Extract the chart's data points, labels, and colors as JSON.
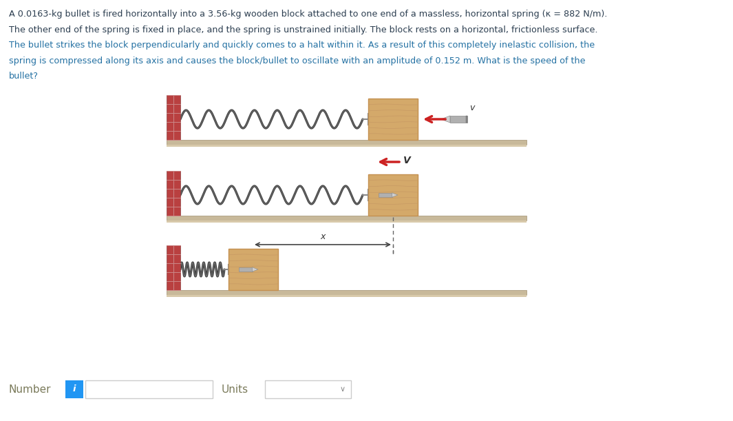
{
  "bg_color": "#ffffff",
  "text_color_dark": "#2c3e50",
  "text_color_blue": "#2471a3",
  "problem_lines": [
    "A 0.0163-kg bullet is fired horizontally into a 3.56-kg wooden block attached to one end of a massless, horizontal spring (κ = 882 N/m).",
    "The other end of the spring is fixed in place, and the spring is unstrained initially. The block rests on a horizontal, frictionless surface.",
    "The bullet strikes the block perpendicularly and quickly comes to a halt within it. As a result of this completely inelastic collision, the",
    "spring is compressed along its axis and causes the block/bullet to oscillate with an amplitude of 0.152 m. What is the speed of the",
    "bullet?"
  ],
  "line_colors": [
    "dark",
    "dark",
    "blue",
    "blue",
    "blue"
  ],
  "wall_color": "#b94040",
  "wall_mortar_color": "#d4a0a0",
  "block_color_light": "#d4a96a",
  "block_color_dark": "#c49050",
  "block_grain_color": "#c09060",
  "surface_top_color": "#c8b99a",
  "surface_body_color": "#d8c9aa",
  "spring_color_dark": "#404040",
  "spring_color_light": "#a0a0a0",
  "arrow_color": "#cc2222",
  "bullet_body_color": "#b0b0b0",
  "bullet_tip_color": "#d0d0d0",
  "text_label_color": "#333333",
  "number_label_color": "#7a7a5a",
  "units_label_color": "#7a7a5a",
  "info_btn_color": "#2196f3",
  "input_border_color": "#cccccc",
  "label_v": "v",
  "label_V": "V",
  "label_x": "x",
  "number_label": "Number",
  "units_label": "Units",
  "fig_width": 10.65,
  "fig_height": 6.11,
  "dpi": 100
}
